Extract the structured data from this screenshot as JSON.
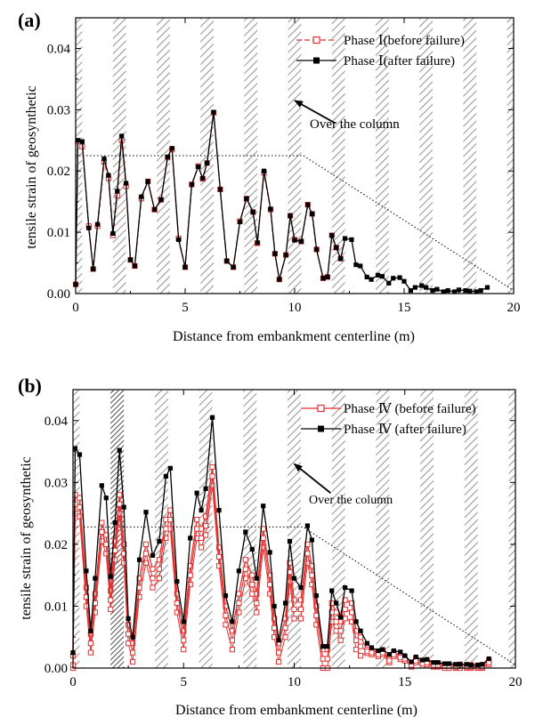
{
  "chart_data": [
    {
      "type": "line",
      "panel_label": "(a)",
      "xlabel": "Distance from embankment centerline (m)",
      "ylabel": "tensile strain of geosynthetic",
      "xlim": [
        0,
        20
      ],
      "ylim": [
        0,
        0.045
      ],
      "x_ticks": [
        0,
        5,
        10,
        15,
        20
      ],
      "y_ticks": [
        0.0,
        0.01,
        0.02,
        0.03,
        0.04
      ],
      "y_tick_labels": [
        "0.00",
        "0.01",
        "0.02",
        "0.03",
        "0.04"
      ],
      "legend_position": "top-right",
      "column_hatch_x": [
        0,
        2,
        4,
        6,
        8,
        10,
        12,
        14,
        16,
        18,
        20
      ],
      "column_hatch_width": 0.6,
      "reference_line": {
        "x": [
          0,
          10.4,
          20
        ],
        "y": [
          0.0225,
          0.0225,
          0.0005
        ]
      },
      "annotation": {
        "text": "Over the column",
        "arrow_tip": [
          10.0,
          0.0315
        ],
        "text_at": [
          10.8,
          0.0275
        ]
      },
      "series": [
        {
          "name": "Phase Ⅰ(before failure)",
          "color": "#e03030",
          "marker": "open-square",
          "dash": "dashed",
          "x": [
            0,
            0.1,
            0.3,
            0.6,
            0.8,
            1.0,
            1.3,
            1.5,
            1.7,
            1.9,
            2.1,
            2.3,
            2.5,
            2.7,
            3.0,
            3.3,
            3.6,
            3.9,
            4.2,
            4.4,
            4.7,
            5.0,
            5.3,
            5.6,
            5.8,
            6.0,
            6.3,
            6.6,
            6.9,
            7.2,
            7.5,
            7.8,
            8.1,
            8.3,
            8.6,
            8.9,
            9.1,
            9.3,
            9.6,
            9.8,
            10.0,
            10.3,
            10.6,
            10.8,
            11.0,
            11.3,
            11.5,
            11.7,
            11.9,
            12.1
          ],
          "y": [
            0.0015,
            0.0248,
            0.024,
            0.011,
            0.004,
            0.011,
            0.0215,
            0.0188,
            0.0095,
            0.016,
            0.025,
            0.0175,
            0.0055,
            0.0045,
            0.0155,
            0.0183,
            0.0137,
            0.0153,
            0.0222,
            0.0235,
            0.009,
            0.0043,
            0.0178,
            0.0208,
            0.0187,
            0.0213,
            0.0295,
            0.017,
            0.0053,
            0.0043,
            0.0118,
            0.0155,
            0.0133,
            0.0082,
            0.0197,
            0.0137,
            0.0065,
            0.0023,
            0.0063,
            0.0127,
            0.0088,
            0.0085,
            0.0145,
            0.013,
            0.0072,
            0.0025,
            0.0027,
            0.0095,
            0.0075,
            0.0057
          ]
        },
        {
          "name": "Phase Ⅰ(after failure)",
          "color": "#000000",
          "marker": "filled-square",
          "dash": "solid",
          "x": [
            0,
            0.1,
            0.3,
            0.6,
            0.8,
            1.0,
            1.3,
            1.5,
            1.7,
            1.9,
            2.1,
            2.3,
            2.5,
            2.7,
            3.0,
            3.3,
            3.6,
            3.9,
            4.2,
            4.4,
            4.7,
            5.0,
            5.3,
            5.6,
            5.8,
            6.0,
            6.3,
            6.6,
            6.9,
            7.2,
            7.5,
            7.8,
            8.1,
            8.3,
            8.6,
            8.9,
            9.1,
            9.3,
            9.6,
            9.8,
            10.0,
            10.3,
            10.6,
            10.8,
            11.0,
            11.3,
            11.5,
            11.7,
            11.9,
            12.1,
            12.3,
            12.6,
            12.8,
            13.0,
            13.3,
            13.5,
            13.8,
            14.0,
            14.3,
            14.5,
            14.8,
            15.0,
            15.3,
            15.5,
            15.8,
            16.0,
            16.3,
            16.5,
            16.8,
            17.0,
            17.3,
            17.5,
            17.8,
            18.0,
            18.3,
            18.5,
            18.8
          ],
          "y": [
            0.0015,
            0.025,
            0.0248,
            0.0107,
            0.004,
            0.0113,
            0.022,
            0.0193,
            0.0098,
            0.0167,
            0.0257,
            0.018,
            0.0055,
            0.0045,
            0.0158,
            0.0183,
            0.0137,
            0.0153,
            0.0223,
            0.0237,
            0.0088,
            0.0043,
            0.0178,
            0.0207,
            0.0188,
            0.0213,
            0.0296,
            0.017,
            0.0053,
            0.0043,
            0.0117,
            0.0155,
            0.0133,
            0.0083,
            0.02,
            0.0138,
            0.0065,
            0.0023,
            0.0063,
            0.0127,
            0.0087,
            0.0085,
            0.0145,
            0.013,
            0.0072,
            0.0025,
            0.0027,
            0.0095,
            0.0075,
            0.0057,
            0.009,
            0.0088,
            0.0047,
            0.0045,
            0.0027,
            0.0023,
            0.003,
            0.0028,
            0.0017,
            0.0025,
            0.0026,
            0.002,
            0.0005,
            0.001,
            0.0013,
            0.001,
            0.0005,
            0.0007,
            0.0003,
            0.0005,
            0.0003,
            0.0006,
            0.0005,
            0.0004,
            0.0003,
            0.0005,
            0.001
          ]
        }
      ]
    },
    {
      "type": "line",
      "panel_label": "(b)",
      "xlabel": "Distance from embankment centerline (m)",
      "ylabel": "tensile strain of geosynthetic",
      "xlim": [
        0,
        20
      ],
      "ylim": [
        0,
        0.045
      ],
      "x_ticks": [
        0,
        5,
        10,
        15,
        20
      ],
      "y_ticks": [
        0.0,
        0.01,
        0.02,
        0.03,
        0.04
      ],
      "y_tick_labels": [
        "0.00",
        "0.01",
        "0.02",
        "0.03",
        "0.04"
      ],
      "legend_position": "top-right",
      "column_hatch_x": [
        0,
        2,
        4,
        6,
        8,
        10,
        12,
        14,
        16,
        18,
        20
      ],
      "column_hatch_width": 0.6,
      "dense_hatch_x": [
        2
      ],
      "reference_line": {
        "x": [
          0,
          10.4,
          20
        ],
        "y": [
          0.0228,
          0.0228,
          0.0005
        ]
      },
      "annotation": {
        "text": "Over the column",
        "arrow_tip": [
          10.0,
          0.033
        ],
        "text_at": [
          10.6,
          0.028
        ]
      },
      "series": [
        {
          "name": "Phase Ⅳ (before failure)",
          "color": "#e03030",
          "marker": "open-square",
          "dash": "solid",
          "fan": [
            [
              0,
              0.003
            ],
            [
              0,
              0.0015
            ]
          ],
          "x": [
            0,
            0.1,
            0.3,
            0.6,
            0.8,
            1.0,
            1.3,
            1.5,
            1.7,
            1.9,
            2.1,
            2.3,
            2.5,
            2.7,
            3.0,
            3.3,
            3.6,
            3.9,
            4.2,
            4.4,
            4.7,
            5.0,
            5.3,
            5.6,
            5.8,
            6.0,
            6.3,
            6.6,
            6.9,
            7.2,
            7.5,
            7.8,
            8.1,
            8.3,
            8.6,
            8.9,
            9.1,
            9.3,
            9.6,
            9.8,
            10.0,
            10.3,
            10.6,
            10.8,
            11.0,
            11.3,
            11.5,
            11.7,
            11.9,
            12.1,
            12.3,
            12.6,
            12.8,
            13.0,
            13.3,
            13.5,
            13.8,
            14.0,
            14.3,
            14.5,
            14.8,
            15.0,
            15.3,
            15.5,
            15.8,
            16.0,
            16.3,
            16.5,
            16.8,
            17.0,
            17.3,
            17.5,
            17.8,
            18.0,
            18.3,
            18.5,
            18.8
          ],
          "y": [
            0.002,
            0.028,
            0.0275,
            0.013,
            0.0055,
            0.012,
            0.0235,
            0.0215,
            0.0125,
            0.0205,
            0.028,
            0.02,
            0.007,
            0.004,
            0.0145,
            0.02,
            0.016,
            0.0175,
            0.024,
            0.0255,
            0.012,
            0.006,
            0.0165,
            0.024,
            0.0225,
            0.0245,
            0.0325,
            0.0195,
            0.01,
            0.006,
            0.012,
            0.0175,
            0.015,
            0.012,
            0.0225,
            0.015,
            0.008,
            0.004,
            0.008,
            0.017,
            0.011,
            0.011,
            0.02,
            0.0165,
            0.01,
            0.003,
            0.003,
            0.0105,
            0.009,
            0.0075,
            0.011,
            0.0105,
            0.006,
            0.005,
            0.003,
            0.0028,
            0.0025,
            0.0028,
            0.0015,
            0.0025,
            0.002,
            0.0018,
            0.0008,
            0.0015,
            0.001,
            0.0012,
            0.0008,
            0.0008,
            0.0006,
            0.0006,
            0.0005,
            0.0006,
            0.0005,
            0.0005,
            0.0004,
            0.0005,
            0.0012
          ]
        },
        {
          "name": "Phase Ⅳ (after failure)",
          "color": "#000000",
          "marker": "filled-square",
          "dash": "solid",
          "x": [
            0,
            0.1,
            0.3,
            0.6,
            0.8,
            1.0,
            1.3,
            1.5,
            1.7,
            1.9,
            2.1,
            2.3,
            2.5,
            2.7,
            3.0,
            3.3,
            3.6,
            3.9,
            4.2,
            4.4,
            4.7,
            5.0,
            5.3,
            5.6,
            5.8,
            6.0,
            6.3,
            6.6,
            6.9,
            7.2,
            7.5,
            7.8,
            8.1,
            8.3,
            8.6,
            8.9,
            9.1,
            9.3,
            9.6,
            9.8,
            10.0,
            10.3,
            10.6,
            10.8,
            11.0,
            11.3,
            11.5,
            11.7,
            11.9,
            12.1,
            12.3,
            12.6,
            12.8,
            13.0,
            13.3,
            13.5,
            13.8,
            14.0,
            14.3,
            14.5,
            14.8,
            15.0,
            15.3,
            15.5,
            15.8,
            16.0,
            16.3,
            16.5,
            16.8,
            17.0,
            17.3,
            17.5,
            17.8,
            18.0,
            18.3,
            18.5,
            18.8
          ],
          "y": [
            0.0025,
            0.0355,
            0.0345,
            0.0157,
            0.006,
            0.0145,
            0.0295,
            0.0275,
            0.0148,
            0.0235,
            0.0352,
            0.026,
            0.008,
            0.005,
            0.0175,
            0.0252,
            0.0182,
            0.0205,
            0.031,
            0.0323,
            0.014,
            0.0075,
            0.021,
            0.0283,
            0.0255,
            0.029,
            0.0405,
            0.0255,
            0.0117,
            0.0075,
            0.0157,
            0.022,
            0.0192,
            0.0145,
            0.0262,
            0.0187,
            0.01,
            0.0045,
            0.0105,
            0.0205,
            0.0145,
            0.013,
            0.023,
            0.0207,
            0.0117,
            0.0035,
            0.0035,
            0.0125,
            0.0105,
            0.0082,
            0.013,
            0.0125,
            0.0075,
            0.006,
            0.004,
            0.0033,
            0.0028,
            0.003,
            0.0022,
            0.0028,
            0.0026,
            0.002,
            0.001,
            0.0018,
            0.0013,
            0.0014,
            0.0009,
            0.0009,
            0.0007,
            0.0007,
            0.0006,
            0.0006,
            0.0006,
            0.0005,
            0.0005,
            0.0006,
            0.0015
          ]
        }
      ]
    }
  ]
}
